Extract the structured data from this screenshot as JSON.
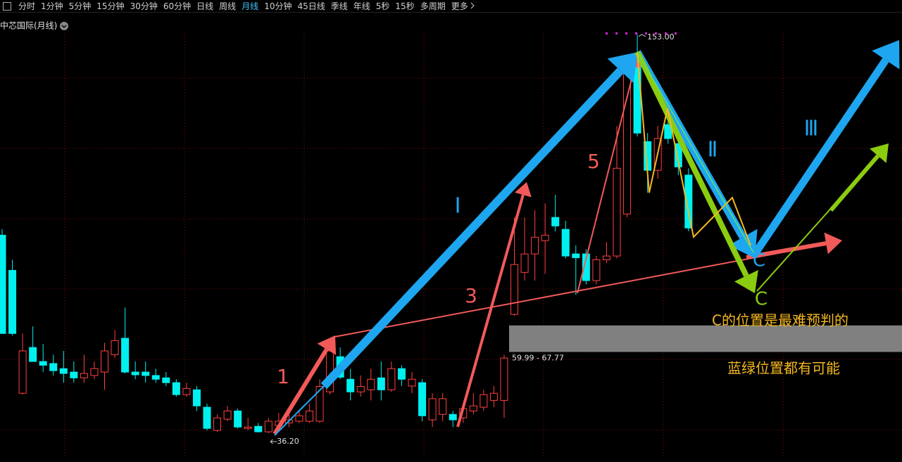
{
  "toolbar": {
    "items": [
      "分时",
      "1分钟",
      "5分钟",
      "15分钟",
      "30分钟",
      "60分钟",
      "日线",
      "周线",
      "月线",
      "10分钟",
      "45日线",
      "季线",
      "年线",
      "5秒",
      "15秒",
      "多周期",
      "更多"
    ],
    "selected": 8
  },
  "chart_data": {
    "type": "candlestick",
    "title": "中芯国际(月线)",
    "categories": [
      null,
      null,
      null,
      null,
      null,
      null,
      null,
      null,
      null,
      null,
      null,
      null,
      null,
      null,
      null,
      null,
      null,
      null,
      null,
      null,
      null,
      null,
      null,
      null,
      null,
      null,
      null,
      null,
      null,
      null,
      null,
      null,
      null,
      null,
      null,
      null,
      null,
      null,
      null,
      null,
      null,
      null,
      null,
      null,
      null,
      null,
      null,
      null,
      null,
      null,
      null,
      null,
      null,
      null,
      null,
      null,
      null,
      null,
      null,
      null,
      null,
      null,
      null,
      null,
      null,
      null,
      null,
      null
    ],
    "open": [
      94.2,
      83.9,
      47.9,
      61.3,
      57.2,
      56.6,
      55.1,
      54.1,
      52.4,
      53.1,
      54.1,
      59.2,
      64.0,
      54.1,
      54.1,
      53.1,
      52.4,
      51.0,
      47.5,
      48.9,
      43.8,
      37.0,
      40.3,
      42.7,
      37.6,
      38.2,
      36.6,
      38.4,
      39.2,
      39.7,
      39.7,
      39.7,
      48.3,
      58.6,
      52.0,
      48.3,
      48.9,
      52.4,
      48.9,
      55.1,
      50.0,
      51.0,
      40.1,
      41.7,
      41.7,
      40.7,
      42.7,
      43.8,
      45.8,
      45.8,
      71.0,
      83.3,
      88.7,
      92.6,
      99.4,
      95.9,
      88.7,
      88.7,
      80.9,
      87.0,
      88.1,
      100.4,
      144.7,
      121.6,
      113.2,
      126.6,
      121.0,
      111.8
    ],
    "high": [
      96.0,
      87.0,
      65.4,
      67.5,
      62.3,
      59.2,
      60.3,
      57.2,
      59.2,
      57.2,
      62.7,
      66.4,
      73.0,
      57.2,
      57.2,
      55.1,
      54.1,
      52.0,
      51.0,
      50.0,
      44.8,
      41.7,
      44.2,
      43.4,
      40.7,
      39.2,
      40.7,
      42.1,
      41.7,
      42.7,
      44.8,
      52.0,
      62.3,
      61.3,
      55.1,
      53.1,
      55.1,
      57.2,
      57.2,
      56.1,
      54.1,
      52.0,
      47.9,
      47.9,
      42.7,
      44.8,
      47.9,
      48.9,
      50.0,
      59.2,
      99.4,
      99.4,
      101.5,
      103.5,
      106.0,
      98.4,
      91.2,
      90.1,
      88.1,
      92.2,
      126.2,
      143.7,
      153.0,
      124.1,
      126.2,
      132.4,
      123.1,
      113.8
    ],
    "low": [
      65.4,
      64.8,
      47.5,
      57.2,
      54.1,
      53.1,
      51.0,
      51.0,
      51.0,
      52.0,
      48.9,
      58.2,
      53.7,
      52.0,
      51.0,
      51.0,
      50.0,
      46.9,
      46.9,
      42.7,
      37.0,
      36.6,
      39.7,
      37.6,
      37.0,
      36.4,
      36.2,
      37.6,
      38.0,
      39.2,
      39.2,
      39.2,
      47.5,
      52.0,
      45.8,
      46.9,
      45.8,
      45.8,
      48.3,
      50.0,
      47.9,
      39.7,
      38.0,
      39.7,
      38.0,
      39.2,
      41.7,
      42.7,
      43.8,
      40.7,
      70.6,
      80.9,
      80.9,
      82.9,
      95.3,
      87.4,
      76.7,
      79.8,
      79.8,
      86.0,
      87.4,
      99.4,
      123.1,
      106.6,
      110.7,
      121.0,
      111.8,
      95.3
    ],
    "close": [
      65.4,
      65.4,
      60.3,
      57.2,
      56.1,
      54.5,
      53.7,
      52.4,
      53.7,
      55.1,
      60.3,
      63.3,
      54.1,
      53.3,
      53.1,
      52.0,
      51.0,
      47.5,
      49.3,
      44.2,
      37.6,
      40.7,
      42.7,
      38.0,
      38.0,
      36.6,
      39.7,
      39.7,
      40.1,
      41.3,
      42.7,
      49.9,
      60.3,
      52.6,
      48.3,
      49.9,
      52.0,
      48.9,
      55.1,
      52.0,
      52.0,
      41.3,
      46.3,
      46.3,
      40.1,
      43.4,
      44.2,
      47.5,
      47.9,
      58.2,
      85.6,
      88.7,
      93.6,
      94.2,
      96.9,
      88.1,
      87.6,
      80.9,
      87.0,
      88.1,
      113.8,
      141.6,
      124.1,
      113.2,
      122.5,
      122.5,
      114.2,
      96.3
    ],
    "up_color": "#ff4040",
    "down_color": "#00f0f0",
    "ylim": [
      32,
      156
    ],
    "grid": true,
    "high_marker": {
      "value": 153.0,
      "label": "153.00"
    },
    "low_marker": {
      "value": 36.2,
      "label": "36.20"
    },
    "zone": {
      "low": 59.99,
      "high": 67.77,
      "label": "59.99 - 67.77",
      "color": "#808080"
    },
    "annotations": {
      "wave_1": "Ⅰ",
      "wave_2": "Ⅱ",
      "wave_3": "Ⅲ",
      "sub_1": "1",
      "sub_3": "3",
      "sub_5": "5",
      "c_blue": "C",
      "c_green": "C",
      "note_1": "C的位置是最难预判的",
      "note_2": "蓝绿位置都有可能"
    }
  }
}
